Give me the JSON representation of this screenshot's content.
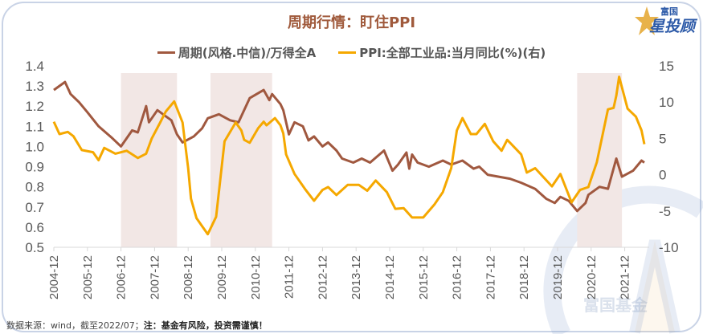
{
  "title": "周期行情：盯住PPI",
  "logo": {
    "line1": "富国",
    "line2": "星投顾"
  },
  "watermark": "富国基金",
  "footer": {
    "source": "数据来源：wind，截至2022/07；",
    "note": "注：基金有风险，投资需谨慎！"
  },
  "colors": {
    "brown": "#a0583f",
    "orange": "#f5a800",
    "shade": "#f2e7e5",
    "title": "#a05a3c"
  },
  "chart_data": {
    "type": "line",
    "title": "周期行情：盯住PPI",
    "legend_position": "top",
    "grid": false,
    "x_ticks": [
      "2004-12",
      "2005-12",
      "2006-12",
      "2007-12",
      "2008-12",
      "2009-12",
      "2010-12",
      "2011-12",
      "2012-12",
      "2013-12",
      "2014-12",
      "2015-12",
      "2016-12",
      "2017-12",
      "2018-12",
      "2019-12",
      "2020-12",
      "2021-12"
    ],
    "y_left": {
      "ylim": [
        0.5,
        1.4
      ],
      "ticks": [
        "1.4",
        "1.3",
        "1.2",
        "1.1",
        "1.0",
        "0.9",
        "0.8",
        "0.7",
        "0.6",
        "0.5"
      ]
    },
    "y_right": {
      "ylim": [
        -10,
        15
      ],
      "ticks": [
        "15",
        "10",
        "5",
        "0",
        "-5",
        "-10"
      ]
    },
    "shaded_periods": [
      [
        "2006-12",
        "2008-08"
      ],
      [
        "2009-08",
        "2011-06"
      ],
      [
        "2020-07",
        "2021-11"
      ]
    ],
    "series": [
      {
        "name": "周期(风格.中信)/万得全A",
        "axis": "left",
        "color": "#a0583f",
        "points": [
          [
            "2004-12",
            1.28
          ],
          [
            "2005-04",
            1.32
          ],
          [
            "2005-06",
            1.26
          ],
          [
            "2005-09",
            1.22
          ],
          [
            "2005-12",
            1.17
          ],
          [
            "2006-04",
            1.1
          ],
          [
            "2006-09",
            1.04
          ],
          [
            "2006-12",
            1.0
          ],
          [
            "2007-04",
            1.08
          ],
          [
            "2007-06",
            1.07
          ],
          [
            "2007-09",
            1.2
          ],
          [
            "2007-10",
            1.12
          ],
          [
            "2008-01",
            1.18
          ],
          [
            "2008-04",
            1.15
          ],
          [
            "2008-06",
            1.13
          ],
          [
            "2008-08",
            1.06
          ],
          [
            "2008-10",
            1.02
          ],
          [
            "2009-02",
            1.05
          ],
          [
            "2009-05",
            1.09
          ],
          [
            "2009-07",
            1.14
          ],
          [
            "2009-11",
            1.16
          ],
          [
            "2010-03",
            1.13
          ],
          [
            "2010-06",
            1.12
          ],
          [
            "2010-10",
            1.24
          ],
          [
            "2011-03",
            1.28
          ],
          [
            "2011-05",
            1.23
          ],
          [
            "2011-06",
            1.26
          ],
          [
            "2011-09",
            1.21
          ],
          [
            "2011-10",
            1.18
          ],
          [
            "2011-12",
            1.06
          ],
          [
            "2012-02",
            1.12
          ],
          [
            "2012-05",
            1.1
          ],
          [
            "2012-07",
            1.03
          ],
          [
            "2012-09",
            1.05
          ],
          [
            "2012-12",
            1.0
          ],
          [
            "2013-02",
            1.02
          ],
          [
            "2013-05",
            0.98
          ],
          [
            "2013-07",
            0.94
          ],
          [
            "2013-11",
            0.92
          ],
          [
            "2014-02",
            0.94
          ],
          [
            "2014-05",
            0.92
          ],
          [
            "2014-10",
            0.98
          ],
          [
            "2015-01",
            0.88
          ],
          [
            "2015-03",
            0.91
          ],
          [
            "2015-06",
            0.97
          ],
          [
            "2015-07",
            0.89
          ],
          [
            "2015-08",
            0.96
          ],
          [
            "2015-10",
            0.92
          ],
          [
            "2016-02",
            0.9
          ],
          [
            "2016-07",
            0.93
          ],
          [
            "2016-10",
            0.91
          ],
          [
            "2017-02",
            0.93
          ],
          [
            "2017-06",
            0.89
          ],
          [
            "2017-08",
            0.9
          ],
          [
            "2017-11",
            0.86
          ],
          [
            "2018-03",
            0.85
          ],
          [
            "2018-07",
            0.84
          ],
          [
            "2018-11",
            0.82
          ],
          [
            "2019-04",
            0.79
          ],
          [
            "2019-08",
            0.74
          ],
          [
            "2019-11",
            0.72
          ],
          [
            "2020-01",
            0.75
          ],
          [
            "2020-04",
            0.73
          ],
          [
            "2020-07",
            0.68
          ],
          [
            "2020-10",
            0.72
          ],
          [
            "2020-11",
            0.76
          ],
          [
            "2021-03",
            0.8
          ],
          [
            "2021-06",
            0.79
          ],
          [
            "2021-09",
            0.94
          ],
          [
            "2021-11",
            0.85
          ],
          [
            "2022-03",
            0.88
          ],
          [
            "2022-06",
            0.93
          ],
          [
            "2022-07",
            0.92
          ]
        ]
      },
      {
        "name": "PPI:全部工业品:当月同比(%)(右)",
        "axis": "right",
        "color": "#f5a800",
        "points": [
          [
            "2004-12",
            7.3
          ],
          [
            "2005-02",
            5.6
          ],
          [
            "2005-05",
            5.9
          ],
          [
            "2005-07",
            5.3
          ],
          [
            "2005-10",
            3.4
          ],
          [
            "2006-02",
            3.1
          ],
          [
            "2006-04",
            2.0
          ],
          [
            "2006-06",
            3.7
          ],
          [
            "2006-10",
            2.9
          ],
          [
            "2007-02",
            3.3
          ],
          [
            "2007-06",
            2.3
          ],
          [
            "2007-09",
            2.9
          ],
          [
            "2007-11",
            5.0
          ],
          [
            "2008-02",
            7.2
          ],
          [
            "2008-04",
            8.7
          ],
          [
            "2008-07",
            10.1
          ],
          [
            "2008-10",
            7.2
          ],
          [
            "2008-12",
            0.9
          ],
          [
            "2009-01",
            -3.3
          ],
          [
            "2009-03",
            -6.0
          ],
          [
            "2009-07",
            -8.2
          ],
          [
            "2009-10",
            -5.8
          ],
          [
            "2010-01",
            4.6
          ],
          [
            "2010-05",
            7.2
          ],
          [
            "2010-07",
            6.1
          ],
          [
            "2010-08",
            4.8
          ],
          [
            "2010-10",
            4.4
          ],
          [
            "2011-01",
            6.4
          ],
          [
            "2011-03",
            7.3
          ],
          [
            "2011-04",
            6.8
          ],
          [
            "2011-07",
            7.8
          ],
          [
            "2011-09",
            6.8
          ],
          [
            "2011-10",
            5.7
          ],
          [
            "2011-11",
            2.8
          ],
          [
            "2012-02",
            0.1
          ],
          [
            "2012-06",
            -2.1
          ],
          [
            "2012-09",
            -3.6
          ],
          [
            "2012-12",
            -2.1
          ],
          [
            "2013-02",
            -1.7
          ],
          [
            "2013-05",
            -2.8
          ],
          [
            "2013-09",
            -1.4
          ],
          [
            "2014-01",
            -1.4
          ],
          [
            "2014-04",
            -2.2
          ],
          [
            "2014-07",
            -0.8
          ],
          [
            "2014-11",
            -2.4
          ],
          [
            "2015-02",
            -4.7
          ],
          [
            "2015-05",
            -4.6
          ],
          [
            "2015-08",
            -5.9
          ],
          [
            "2015-12",
            -5.9
          ],
          [
            "2016-04",
            -4.1
          ],
          [
            "2016-07",
            -2.4
          ],
          [
            "2016-10",
            0.9
          ],
          [
            "2016-12",
            6.1
          ],
          [
            "2017-02",
            7.8
          ],
          [
            "2017-05",
            5.6
          ],
          [
            "2017-07",
            5.6
          ],
          [
            "2017-10",
            7.0
          ],
          [
            "2018-01",
            4.6
          ],
          [
            "2018-04",
            3.3
          ],
          [
            "2018-06",
            4.8
          ],
          [
            "2018-08",
            4.0
          ],
          [
            "2018-11",
            2.8
          ],
          [
            "2019-01",
            0.3
          ],
          [
            "2019-04",
            0.9
          ],
          [
            "2019-10",
            -1.6
          ],
          [
            "2020-01",
            0.1
          ],
          [
            "2020-05",
            -3.8
          ],
          [
            "2020-08",
            -2.1
          ],
          [
            "2020-11",
            -1.7
          ],
          [
            "2021-02",
            1.7
          ],
          [
            "2021-06",
            9.0
          ],
          [
            "2021-08",
            9.2
          ],
          [
            "2021-09",
            10.9
          ],
          [
            "2021-10",
            13.5
          ],
          [
            "2022-01",
            9.1
          ],
          [
            "2022-04",
            8.0
          ],
          [
            "2022-06",
            6.1
          ],
          [
            "2022-07",
            4.2
          ]
        ]
      }
    ]
  }
}
